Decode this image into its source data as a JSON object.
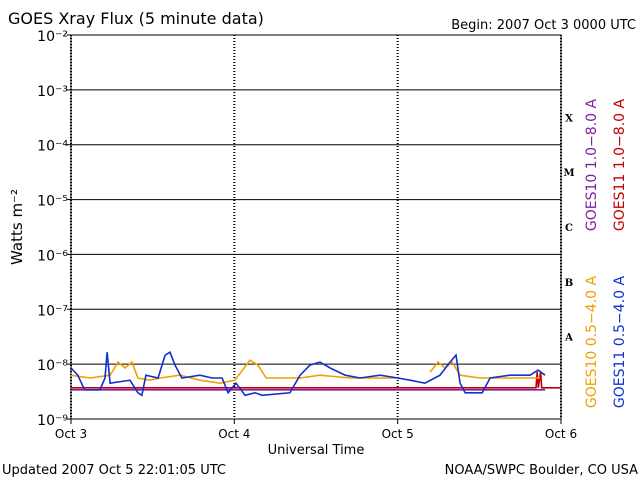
{
  "chart_data": {
    "type": "line",
    "title": "GOES Xray Flux (5 minute data)",
    "subtitle": "Begin:  2007 Oct 3 0000 UTC",
    "ylabel": "Watts m⁻²",
    "xlabel": "Universal Time",
    "footer_left": "Updated 2007 Oct  5 22:01:05 UTC",
    "footer_right": "NOAA/SWPC Boulder, CO USA",
    "yscale": "log",
    "grid": true,
    "ylim": [
      1e-09,
      0.01
    ],
    "yticks": [
      {
        "value": 1e-09,
        "label": "10⁻⁹"
      },
      {
        "value": 1e-08,
        "label": "10⁻⁸"
      },
      {
        "value": 1e-07,
        "label": "10⁻⁷"
      },
      {
        "value": 1e-06,
        "label": "10⁻⁶"
      },
      {
        "value": 1e-05,
        "label": "10⁻⁵"
      },
      {
        "value": 0.0001,
        "label": "10⁻⁴"
      },
      {
        "value": 0.001,
        "label": "10⁻³"
      },
      {
        "value": 0.01,
        "label": "10⁻²"
      }
    ],
    "xlim": [
      "2007-10-03T00:00",
      "2007-10-06T00:00"
    ],
    "xticks": [
      {
        "value": "2007-10-03T00:00",
        "label": "Oct 3"
      },
      {
        "value": "2007-10-04T00:00",
        "label": "Oct 4"
      },
      {
        "value": "2007-10-05T00:00",
        "label": "Oct 5"
      },
      {
        "value": "2007-10-06T00:00",
        "label": "Oct 6"
      }
    ],
    "class_labels": [
      {
        "label": "X",
        "value": 0.0001
      },
      {
        "label": "M",
        "value": 1e-05
      },
      {
        "label": "C",
        "value": 1e-06
      },
      {
        "label": "B",
        "value": 1e-07
      },
      {
        "label": "A",
        "value": 1e-08
      }
    ],
    "series": [
      {
        "name": "GOES10 0.5−4.0 A",
        "color": "#f0a000",
        "x": [
          "2007-10-03T00:00",
          "2007-10-03T02:48",
          "2007-10-03T05:45",
          "2007-10-03T06:55",
          "2007-10-03T07:56",
          "2007-10-03T08:58",
          "2007-10-03T09:50",
          "2007-10-03T11:37",
          "2007-10-03T13:05",
          "2007-10-03T16:00",
          "2007-10-03T18:57",
          "2007-10-03T21:54",
          "2007-10-04T00:05",
          "2007-10-04T02:18",
          "2007-10-04T03:28",
          "2007-10-04T04:40",
          "2007-10-04T09:40",
          "2007-10-04T12:35",
          "2007-10-04T17:00",
          "2007-10-04T23:38",
          "2007-10-05T02:00",
          "2007-10-05T04:46",
          "2007-10-05T05:56",
          "2007-10-05T06:58",
          "2007-10-05T08:00",
          "2007-10-05T09:10",
          "2007-10-05T12:05",
          "2007-10-05T16:31",
          "2007-10-05T20:55"
        ],
        "values": [
          6.3e-09,
          5.6e-09,
          6.3e-09,
          1.09e-08,
          8.5e-09,
          1.09e-08,
          5.6e-09,
          5.1e-09,
          5.6e-09,
          6.3e-09,
          5.1e-09,
          4.5e-09,
          5.1e-09,
          1.18e-08,
          9.6e-09,
          5.6e-09,
          5.6e-09,
          6.3e-09,
          5.6e-09,
          5.6e-09,
          null,
          7.2e-09,
          1.09e-08,
          8.5e-09,
          1.09e-08,
          6.3e-09,
          5.6e-09,
          5.6e-09,
          5.6e-09
        ]
      },
      {
        "name": "GOES11 0.5−4.0 A",
        "color": "#1030d0",
        "x": [
          "2007-10-03T00:00",
          "2007-10-03T01:00",
          "2007-10-03T02:00",
          "2007-10-03T04:15",
          "2007-10-03T05:00",
          "2007-10-03T05:18",
          "2007-10-03T05:45",
          "2007-10-03T08:40",
          "2007-10-03T09:50",
          "2007-10-03T10:25",
          "2007-10-03T11:00",
          "2007-10-03T12:48",
          "2007-10-03T13:50",
          "2007-10-03T14:33",
          "2007-10-03T15:17",
          "2007-10-03T16:18",
          "2007-10-03T18:57",
          "2007-10-03T20:43",
          "2007-10-03T22:12",
          "2007-10-03T23:05",
          "2007-10-04T00:15",
          "2007-10-04T01:35",
          "2007-10-04T03:03",
          "2007-10-04T04:05",
          "2007-10-04T08:10",
          "2007-10-04T09:40",
          "2007-10-04T11:07",
          "2007-10-04T12:35",
          "2007-10-04T14:05",
          "2007-10-04T16:17",
          "2007-10-04T18:28",
          "2007-10-04T21:25",
          "2007-10-05T00:00",
          "2007-10-05T01:50",
          "2007-10-05T04:00",
          "2007-10-05T06:13",
          "2007-10-05T07:41",
          "2007-10-05T08:34",
          "2007-10-05T09:10",
          "2007-10-05T09:55",
          "2007-10-05T12:25",
          "2007-10-05T13:35",
          "2007-10-05T16:31",
          "2007-10-05T19:27",
          "2007-10-05T20:38",
          "2007-10-05T21:40"
        ],
        "values": [
          8.5e-09,
          6.3e-09,
          3.4e-09,
          3.4e-09,
          5.6e-09,
          1.65e-08,
          4.5e-09,
          5.1e-09,
          3e-09,
          2.7e-09,
          6.3e-09,
          5.6e-09,
          1.46e-08,
          1.65e-08,
          9.6e-09,
          5.6e-09,
          6.3e-09,
          5.6e-09,
          5.6e-09,
          3e-09,
          4.5e-09,
          2.7e-09,
          3e-09,
          2.7e-09,
          3e-09,
          6.3e-09,
          9.6e-09,
          1.09e-08,
          8.5e-09,
          6.3e-09,
          5.6e-09,
          6.3e-09,
          5.6e-09,
          5.1e-09,
          4.5e-09,
          6.3e-09,
          1.09e-08,
          1.46e-08,
          4.5e-09,
          3e-09,
          3e-09,
          5.6e-09,
          6.3e-09,
          6.3e-09,
          7.8e-09,
          6.3e-09
        ]
      },
      {
        "name": "GOES10 1.0−8.0 A",
        "color": "#8020a0",
        "x": [
          "2007-10-03T00:00",
          "2007-10-05T21:40"
        ],
        "values": [
          3.4e-09,
          3.4e-09
        ]
      },
      {
        "name": "GOES11 1.0−8.0 A",
        "color": "#c00000",
        "x": [
          "2007-10-03T00:00",
          "2007-10-05T20:20",
          "2007-10-05T20:30",
          "2007-10-05T20:40",
          "2007-10-05T21:00",
          "2007-10-05T21:10",
          "2007-10-06T00:00"
        ],
        "values": [
          3.7e-09,
          3.7e-09,
          7.2e-09,
          3.7e-09,
          7.2e-09,
          3.7e-09,
          3.7e-09
        ]
      }
    ]
  }
}
